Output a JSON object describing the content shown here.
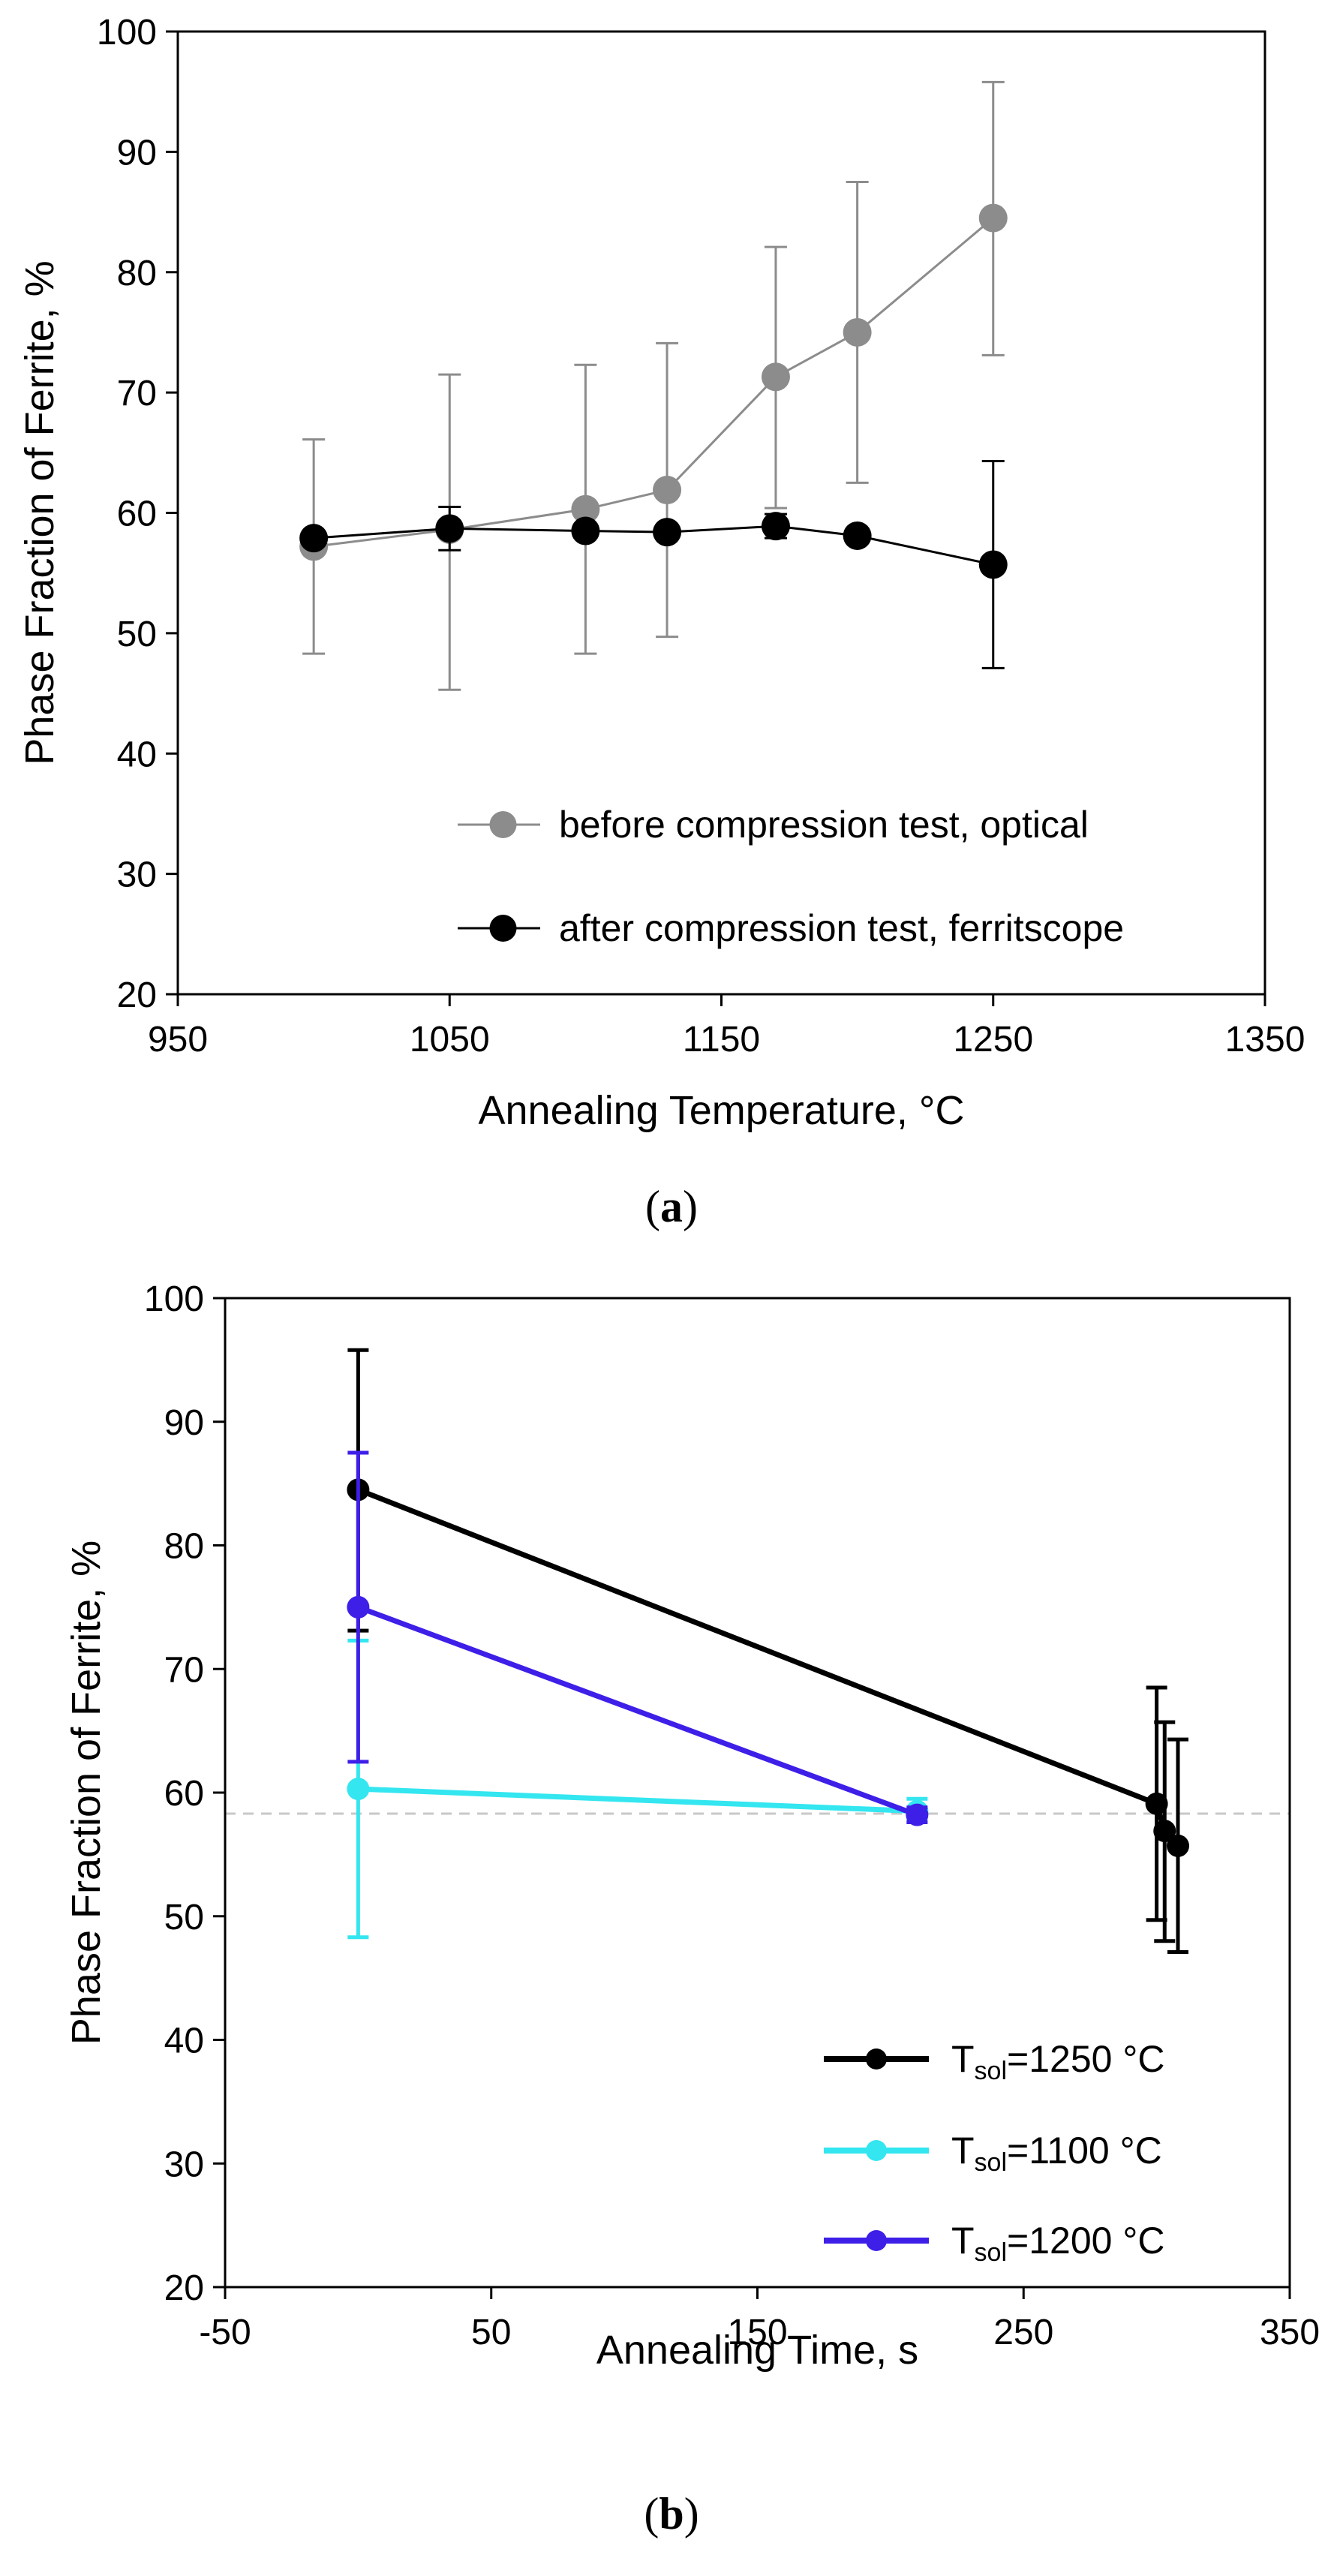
{
  "chart_data": [
    {
      "type": "line",
      "panel_label": "a",
      "xlabel": "Annealing Temperature, °C",
      "ylabel": "Phase Fraction of Ferrite, %",
      "xlim": [
        950,
        1350
      ],
      "ylim": [
        20,
        100
      ],
      "xticks": [
        950,
        1050,
        1150,
        1250,
        1350
      ],
      "yticks": [
        20,
        30,
        40,
        50,
        60,
        70,
        80,
        90,
        100
      ],
      "legend_position": "lower-right",
      "series": [
        {
          "name": "before compression test, optical",
          "color": "#8c8c8c",
          "x": [
            1000,
            1050,
            1100,
            1130,
            1170,
            1200,
            1250
          ],
          "y": [
            57.2,
            58.6,
            60.3,
            61.9,
            71.3,
            75.0,
            84.5
          ],
          "err_low": [
            48.3,
            45.3,
            48.3,
            49.7,
            60.4,
            62.5,
            73.1
          ],
          "err_high": [
            66.1,
            71.5,
            72.3,
            74.1,
            82.1,
            87.5,
            95.8
          ]
        },
        {
          "name": "after compression test, ferritscope",
          "color": "#000000",
          "x": [
            1000,
            1050,
            1100,
            1130,
            1170,
            1200,
            1250
          ],
          "y": [
            57.9,
            58.7,
            58.5,
            58.4,
            58.9,
            58.1,
            55.7
          ],
          "err_low": [
            57.9,
            56.9,
            58.5,
            58.4,
            57.9,
            58.1,
            47.1
          ],
          "err_high": [
            57.9,
            60.5,
            58.5,
            58.4,
            59.9,
            58.1,
            64.3
          ]
        }
      ]
    },
    {
      "type": "line",
      "panel_label": "b",
      "xlabel": "Annealing Time, s",
      "ylabel": "Phase Fraction of Ferrite, %",
      "xlim": [
        -50,
        350
      ],
      "ylim": [
        20,
        100
      ],
      "xticks": [
        -50,
        50,
        150,
        250,
        350
      ],
      "yticks": [
        20,
        30,
        40,
        50,
        60,
        70,
        80,
        90,
        100
      ],
      "reference_line_y": 58.3,
      "legend_position": "lower-right",
      "series": [
        {
          "name": "T",
          "sub": "sol",
          "suffix": "=1250 °C",
          "color": "#000000",
          "x": [
            0,
            300,
            303,
            308
          ],
          "y": [
            84.5,
            59.1,
            56.9,
            55.7
          ],
          "err_low": [
            73.1,
            49.7,
            48.0,
            47.1
          ],
          "err_high": [
            95.8,
            68.5,
            65.7,
            64.3
          ]
        },
        {
          "name": "T",
          "sub": "sol",
          "suffix": "=1100 °C",
          "color": "#33e6f0",
          "x": [
            0,
            210
          ],
          "y": [
            60.3,
            58.5
          ],
          "err_low": [
            48.3,
            57.7
          ],
          "err_high": [
            72.3,
            59.5
          ]
        },
        {
          "name": "T",
          "sub": "sol",
          "suffix": "=1200 °C",
          "color": "#3d1fe8",
          "x": [
            0,
            210
          ],
          "y": [
            75.0,
            58.2
          ],
          "err_low": [
            62.5,
            57.6
          ],
          "err_high": [
            87.5,
            58.8
          ]
        }
      ]
    }
  ]
}
